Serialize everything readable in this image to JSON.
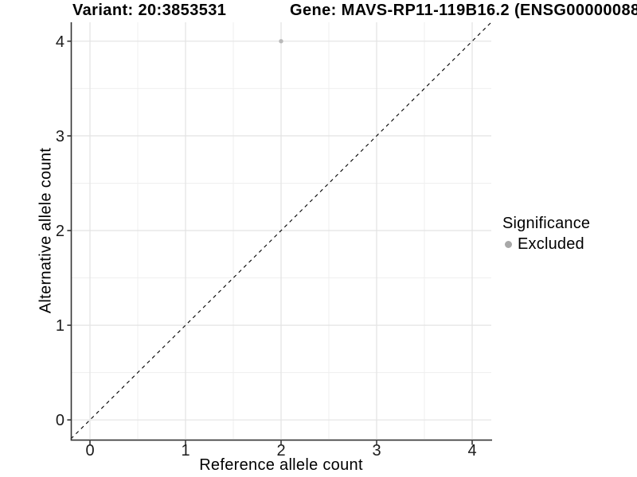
{
  "header": {
    "variant_title": "Variant: 20:3853531",
    "gene_title": "Gene: MAVS-RP11-119B16.2 (ENSG000000888"
  },
  "chart_data": {
    "type": "scatter",
    "xlabel": "Reference allele count",
    "ylabel": "Alternative allele count",
    "xlim": [
      -0.2,
      4.2
    ],
    "ylim": [
      -0.2,
      4.2
    ],
    "x_ticks": [
      0,
      1,
      2,
      3,
      4
    ],
    "y_ticks": [
      0,
      1,
      2,
      3,
      4
    ],
    "x_minor_ticks": [
      0.5,
      1.5,
      2.5,
      3.5
    ],
    "y_minor_ticks": [
      0.5,
      1.5,
      2.5,
      3.5
    ],
    "grid": true,
    "legend_position": "right",
    "reference_line": {
      "kind": "identity",
      "equation": "y = x",
      "style": "dashed",
      "color": "#000000"
    },
    "series": [
      {
        "name": "Excluded",
        "color": "#b9b9b9",
        "points": [
          {
            "x": 2,
            "y": 4
          }
        ]
      }
    ],
    "legend": {
      "title": "Significance",
      "items": [
        {
          "label": "Excluded",
          "color": "#a8a8a8"
        }
      ]
    }
  },
  "colors": {
    "background": "#ffffff",
    "grid_major": "#e3e3e3",
    "grid_minor": "#efefef",
    "axis_line": "#333333",
    "tick_label": "#1a1a1a"
  }
}
